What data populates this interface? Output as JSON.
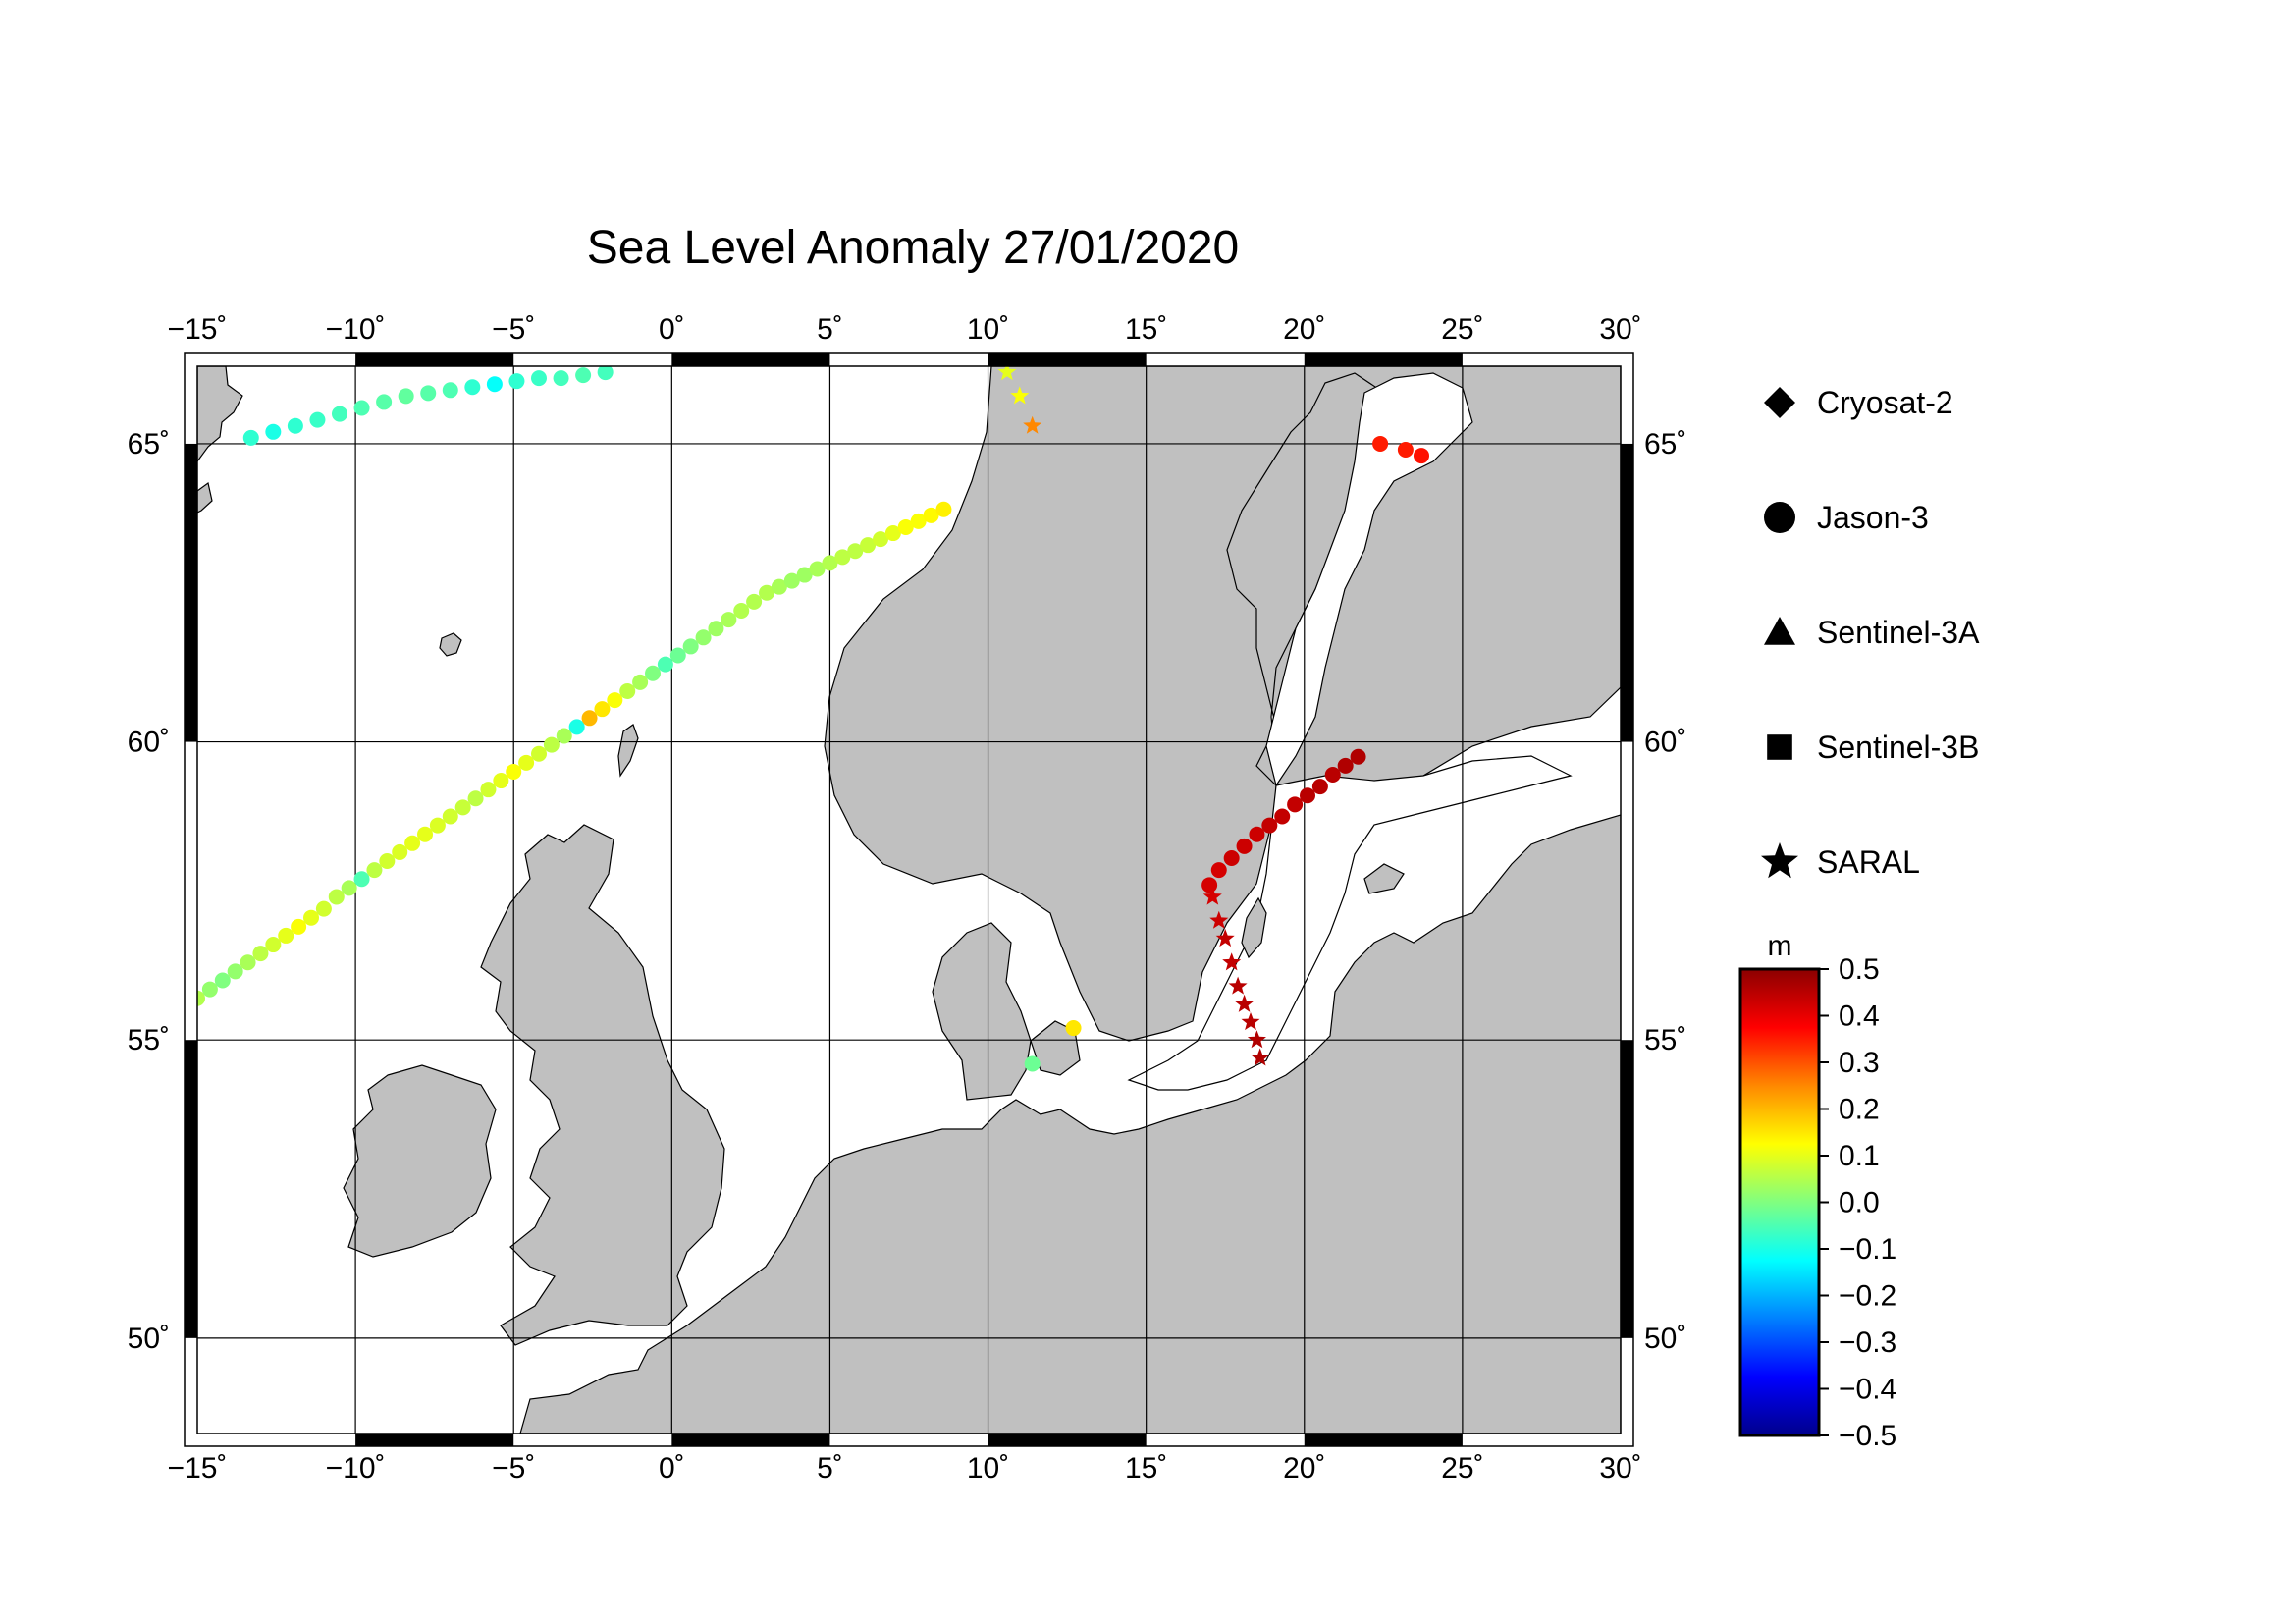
{
  "title": "Sea Level Anomaly 27/01/2020",
  "map": {
    "lon_range": [
      -15,
      30
    ],
    "lat_range": [
      48.4,
      66.3
    ],
    "lon_ticks": [
      -15,
      -10,
      -5,
      0,
      5,
      10,
      15,
      20,
      25,
      30
    ],
    "lat_ticks": [
      50,
      55,
      60,
      65
    ],
    "lon_tick_labels": [
      "−15˚",
      "−10˚",
      "−5˚",
      "0˚",
      "5˚",
      "10˚",
      "15˚",
      "20˚",
      "25˚",
      "30˚"
    ],
    "lat_tick_labels": [
      "50˚",
      "55˚",
      "60˚",
      "65˚"
    ],
    "land_color": "#c0c0c0",
    "sea_color": "#ffffff",
    "grid": true
  },
  "legend": {
    "items": [
      {
        "label": "Cryosat-2",
        "symbol": "diamond"
      },
      {
        "label": "Jason-3",
        "symbol": "circle"
      },
      {
        "label": "Sentinel-3A",
        "symbol": "triangle"
      },
      {
        "label": "Sentinel-3B",
        "symbol": "square"
      },
      {
        "label": "SARAL",
        "symbol": "star"
      }
    ]
  },
  "colorbar": {
    "unit": "m",
    "min": -0.5,
    "max": 0.5,
    "tick_labels": [
      "0.5",
      "0.4",
      "0.3",
      "0.2",
      "0.1",
      "0.0",
      "−0.1",
      "−0.2",
      "−0.3",
      "−0.4",
      "−0.5"
    ],
    "colors": [
      "#8b0000",
      "#ff0000",
      "#ff8800",
      "#ffff00",
      "#80ff80",
      "#00ffff",
      "#0080ff",
      "#0000ff",
      "#00008b"
    ]
  },
  "chart_data": {
    "type": "scatter",
    "title": "Sea Level Anomaly 27/01/2020",
    "xlabel": "",
    "ylabel": "",
    "xlim": [
      -15,
      30
    ],
    "ylim": [
      48.4,
      66.3
    ],
    "series": [
      {
        "name": "Jason-3",
        "symbol": "circle",
        "track": "norwegian-sea-north",
        "lon": [
          -13.3,
          -12.6,
          -11.9,
          -11.2,
          -10.5,
          -9.8,
          -9.1,
          -8.4,
          -7.7,
          -7.0,
          -6.3,
          -5.6,
          -4.9,
          -4.2,
          -3.5,
          -2.8,
          -2.1
        ],
        "lat": [
          65.1,
          65.2,
          65.3,
          65.4,
          65.5,
          65.6,
          65.7,
          65.8,
          65.85,
          65.9,
          65.95,
          66.0,
          66.05,
          66.1,
          66.1,
          66.15,
          66.2
        ],
        "sla": [
          -0.08,
          -0.1,
          -0.08,
          -0.07,
          -0.06,
          -0.05,
          -0.04,
          -0.03,
          -0.04,
          -0.05,
          -0.08,
          -0.12,
          -0.08,
          -0.07,
          -0.06,
          -0.05,
          -0.06
        ]
      },
      {
        "name": "Jason-3",
        "symbol": "circle",
        "track": "north-sea-long",
        "lon": [
          -15.0,
          -14.6,
          -14.2,
          -13.8,
          -13.4,
          -13.0,
          -12.6,
          -12.2,
          -11.8,
          -11.4,
          -11.0,
          -10.6,
          -10.2,
          -9.8,
          -9.4,
          -9.0,
          -8.6,
          -8.2,
          -7.8,
          -7.4,
          -7.0,
          -6.6,
          -6.2,
          -5.8,
          -5.4,
          -5.0,
          -4.6,
          -4.2,
          -3.8,
          -3.4,
          -3.0,
          -2.6,
          -2.2,
          -1.8,
          -1.4,
          -1.0,
          -0.6,
          -0.2,
          0.2,
          0.6,
          1.0,
          1.4,
          1.8,
          2.2,
          2.6,
          3.0,
          3.4,
          3.8,
          4.2,
          4.6,
          5.0,
          5.4,
          5.8,
          6.2,
          6.6,
          7.0,
          7.4,
          7.8,
          8.2,
          8.6
        ],
        "lat": [
          55.7,
          55.85,
          56.0,
          56.15,
          56.3,
          56.45,
          56.6,
          56.75,
          56.9,
          57.05,
          57.2,
          57.4,
          57.55,
          57.7,
          57.85,
          58.0,
          58.15,
          58.3,
          58.45,
          58.6,
          58.75,
          58.9,
          59.05,
          59.2,
          59.35,
          59.5,
          59.65,
          59.8,
          59.95,
          60.1,
          60.25,
          60.4,
          60.55,
          60.7,
          60.85,
          61.0,
          61.15,
          61.3,
          61.45,
          61.6,
          61.75,
          61.9,
          62.05,
          62.2,
          62.35,
          62.5,
          62.6,
          62.7,
          62.8,
          62.9,
          63.0,
          63.1,
          63.2,
          63.3,
          63.4,
          63.5,
          63.6,
          63.7,
          63.8,
          63.9
        ],
        "sla": [
          0.05,
          0.02,
          0.0,
          0.02,
          0.04,
          0.06,
          0.08,
          0.1,
          0.12,
          0.1,
          0.08,
          0.06,
          0.04,
          -0.05,
          0.06,
          0.08,
          0.09,
          0.1,
          0.1,
          0.09,
          0.08,
          0.07,
          0.06,
          0.08,
          0.1,
          0.12,
          0.1,
          0.08,
          0.06,
          0.04,
          -0.1,
          0.2,
          0.15,
          0.12,
          0.06,
          0.04,
          0.0,
          -0.05,
          -0.02,
          0.0,
          0.02,
          0.03,
          0.04,
          0.05,
          0.05,
          0.05,
          0.04,
          0.03,
          0.03,
          0.04,
          0.05,
          0.06,
          0.06,
          0.07,
          0.08,
          0.1,
          0.12,
          0.12,
          0.13,
          0.14
        ]
      },
      {
        "name": "Jason-3",
        "symbol": "circle",
        "track": "bothnian-bay",
        "lon": [
          22.4,
          23.2,
          23.7
        ],
        "lat": [
          65.0,
          64.9,
          64.8
        ],
        "sla": [
          0.35,
          0.35,
          0.36
        ]
      },
      {
        "name": "Jason-3",
        "symbol": "circle",
        "track": "baltic-proper",
        "lon": [
          17.0,
          17.3,
          17.7,
          18.1,
          18.5,
          18.9,
          19.3,
          19.7,
          20.1,
          20.5,
          20.9,
          21.3,
          21.7
        ],
        "lat": [
          57.6,
          57.85,
          58.05,
          58.25,
          58.45,
          58.6,
          58.75,
          58.95,
          59.1,
          59.25,
          59.45,
          59.6,
          59.75
        ],
        "sla": [
          0.42,
          0.42,
          0.43,
          0.43,
          0.43,
          0.44,
          0.44,
          0.44,
          0.45,
          0.45,
          0.45,
          0.46,
          0.46
        ]
      },
      {
        "name": "Jason-3",
        "symbol": "circle",
        "track": "danish-straits",
        "lon": [
          12.7,
          11.4
        ],
        "lat": [
          55.2,
          54.6
        ],
        "sla": [
          0.15,
          -0.02
        ]
      },
      {
        "name": "SARAL",
        "symbol": "star",
        "track": "norway-coast",
        "lon": [
          10.6,
          11.0,
          11.4
        ],
        "lat": [
          66.2,
          65.8,
          65.3
        ],
        "sla": [
          0.1,
          0.12,
          0.25
        ]
      },
      {
        "name": "SARAL",
        "symbol": "star",
        "track": "baltic-south",
        "lon": [
          17.1,
          17.3,
          17.5,
          17.7,
          17.9,
          18.1,
          18.3,
          18.5,
          18.6
        ],
        "lat": [
          57.4,
          57.0,
          56.7,
          56.3,
          55.9,
          55.6,
          55.3,
          55.0,
          54.7
        ],
        "sla": [
          0.42,
          0.43,
          0.44,
          0.44,
          0.45,
          0.45,
          0.45,
          0.46,
          0.46
        ]
      }
    ]
  }
}
